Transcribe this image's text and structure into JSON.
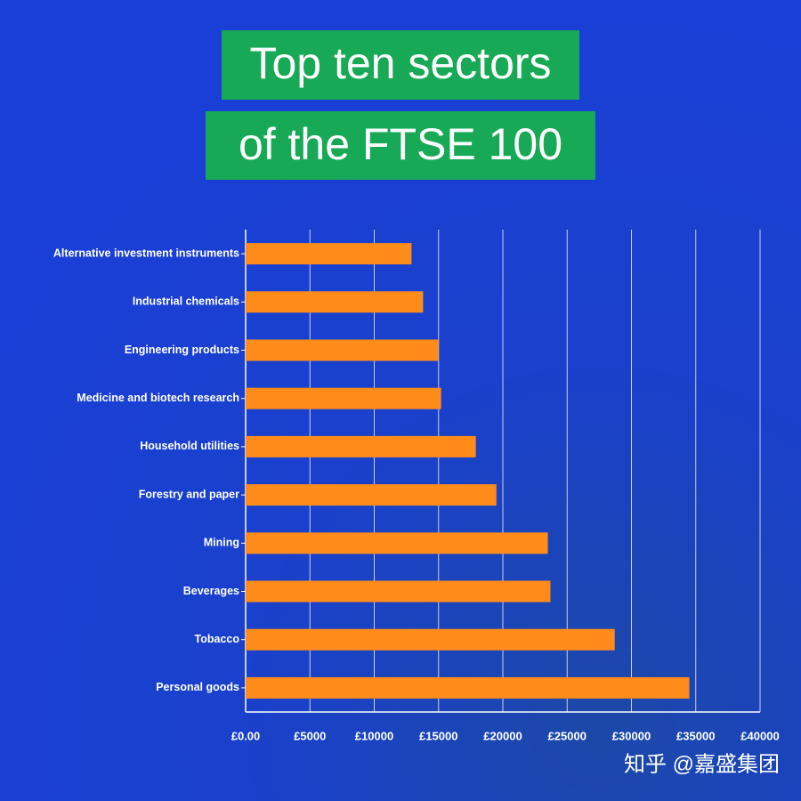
{
  "chart_data": {
    "type": "hbar",
    "title": [
      "Top ten sectors",
      "of the FTSE 100"
    ],
    "categories": [
      "Alternative investment instruments",
      "Industrial chemicals",
      "Engineering products",
      "Medicine and biotech research",
      "Household utilities",
      "Forestry and paper",
      "Mining",
      "Beverages",
      "Tobacco",
      "Personal goods"
    ],
    "values": [
      12900,
      13800,
      15000,
      15200,
      17900,
      19500,
      23500,
      23700,
      28700,
      34500
    ],
    "color": "#ff8c1a",
    "xlim": [
      0,
      40000
    ],
    "xticks": [
      {
        "value": 0,
        "label": "£0.00"
      },
      {
        "value": 5000,
        "label": "£5000"
      },
      {
        "value": 10000,
        "label": "£10000"
      },
      {
        "value": 15000,
        "label": "£15000"
      },
      {
        "value": 20000,
        "label": "£20000"
      },
      {
        "value": 25000,
        "label": "£25000"
      },
      {
        "value": 30000,
        "label": "£30000"
      },
      {
        "value": 35000,
        "label": "£35000"
      },
      {
        "value": 40000,
        "label": "£40000"
      }
    ],
    "grid": true,
    "watermark": "知乎 @嘉盛集团"
  }
}
